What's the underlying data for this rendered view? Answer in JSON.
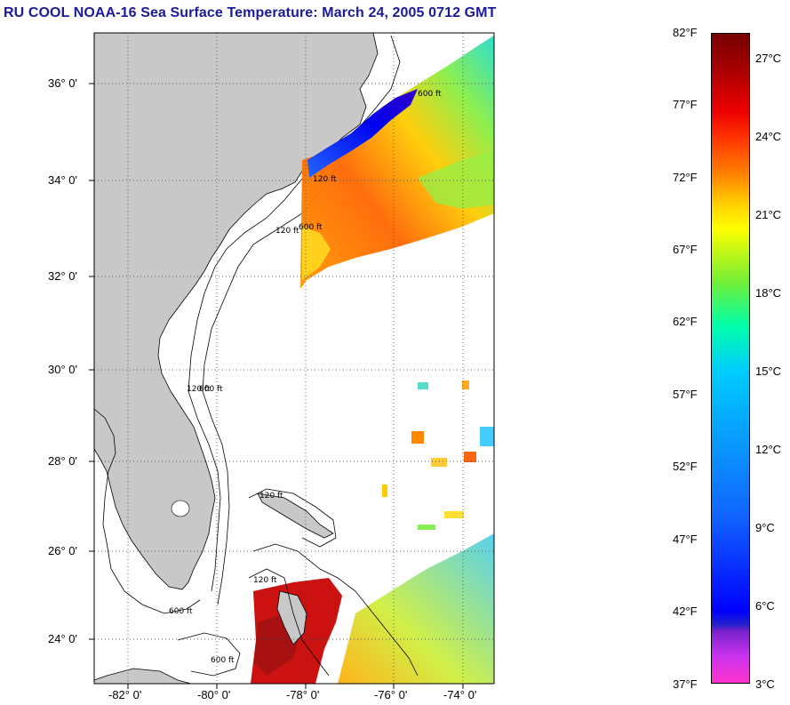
{
  "title": "RU COOL  NOAA-16  Sea Surface Temperature:  March 24, 2005 0712 GMT",
  "map": {
    "lat_labels": [
      "36° 0'",
      "34° 0'",
      "32° 0'",
      "30° 0'",
      "28° 0'",
      "26° 0'",
      "24° 0'"
    ],
    "lon_labels": [
      "-82° 0'",
      "-80° 0'",
      "-78° 0'",
      "-76° 0'",
      "-74° 0'"
    ],
    "depth_labels": [
      "120 ft",
      "600 ft"
    ],
    "land_color": "#c8c8c8",
    "ocean_color": "#ffffff"
  },
  "colorbar": {
    "fahrenheit_labels": [
      "82°F",
      "77°F",
      "72°F",
      "67°F",
      "62°F",
      "57°F",
      "52°F",
      "47°F",
      "42°F",
      "37°F"
    ],
    "celsius_labels": [
      "27°C",
      "24°C",
      "21°C",
      "18°C",
      "15°C",
      "12°C",
      "9°C",
      "6°C",
      "3°C"
    ]
  }
}
